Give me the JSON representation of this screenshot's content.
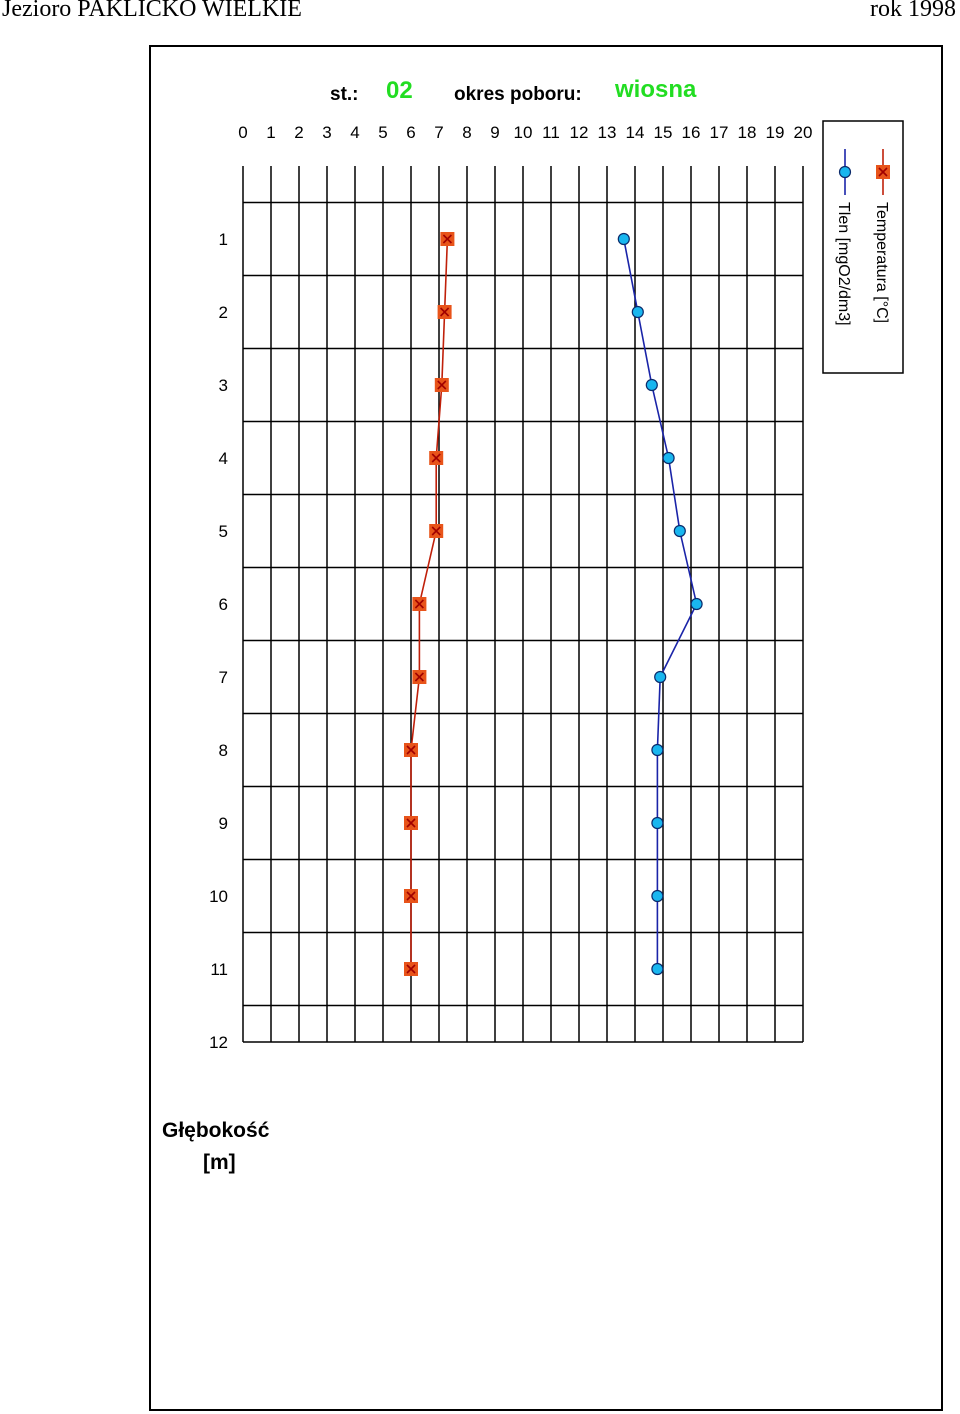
{
  "header": {
    "title": "Jezioro PAKLICKO WIELKIE",
    "year": "rok 1998"
  },
  "chart_labels": {
    "station_label": "st.:",
    "station_value": "02",
    "period_label": "okres poboru:",
    "period_value": "wiosna",
    "depth_label_line1": "Głębokość",
    "depth_label_line2": "[m]"
  },
  "colors": {
    "temperature": "#e8541a",
    "oxygen": "#1a24a8",
    "oxygen_marker": "#19b6ef",
    "accent_text": "#22dd22"
  },
  "chart_data": {
    "type": "line",
    "x_ticks": [
      0,
      1,
      2,
      3,
      4,
      5,
      6,
      7,
      8,
      9,
      10,
      11,
      12,
      13,
      14,
      15,
      16,
      17,
      18,
      19,
      20
    ],
    "y_ticks": [
      1,
      2,
      3,
      4,
      5,
      6,
      7,
      8,
      9,
      10,
      11,
      12
    ],
    "xlim": [
      0,
      20
    ],
    "ylim": [
      0,
      12
    ],
    "y_inverted": true,
    "grid": true,
    "legend_position": "right",
    "series": [
      {
        "name": "Temperatura [°C]",
        "marker": "square-x",
        "color": "#e8541a",
        "depth": [
          1,
          2,
          3,
          4,
          5,
          6,
          7,
          8,
          9,
          10,
          11
        ],
        "values": [
          7.3,
          7.2,
          7.1,
          6.9,
          6.9,
          6.3,
          6.3,
          6.0,
          6.0,
          6.0,
          6.0
        ]
      },
      {
        "name": "Tlen [mgO2/dm3]",
        "marker": "circle",
        "color": "#1a24a8",
        "depth": [
          1,
          2,
          3,
          4,
          5,
          6,
          7,
          8,
          9,
          10,
          11
        ],
        "values": [
          13.6,
          14.1,
          14.6,
          15.2,
          15.6,
          16.2,
          14.9,
          14.8,
          14.8,
          14.8,
          14.8
        ]
      }
    ]
  }
}
